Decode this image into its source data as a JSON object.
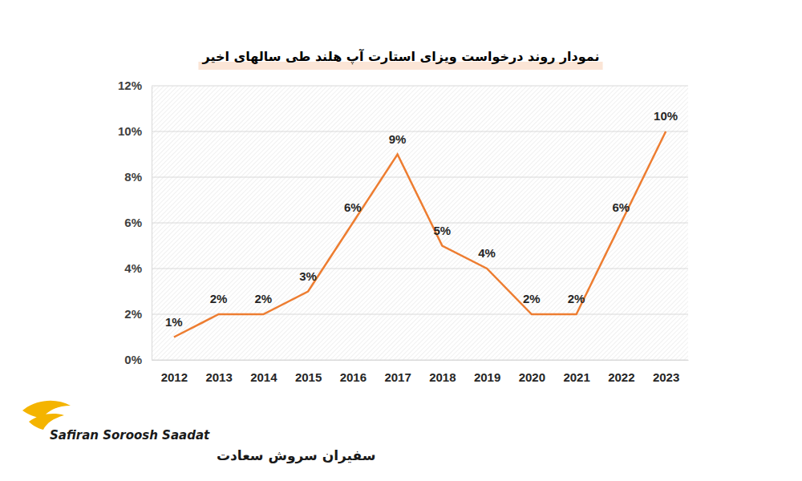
{
  "chart_data": {
    "type": "line",
    "title": "نمودار روند درخواست ویزای استارت آپ هلند طی سالهای اخیر",
    "categories": [
      "2012",
      "2013",
      "2014",
      "2015",
      "2016",
      "2017",
      "2018",
      "2019",
      "2020",
      "2021",
      "2022",
      "2023"
    ],
    "values": [
      1,
      2,
      2,
      3,
      6,
      9,
      5,
      4,
      2,
      2,
      6,
      10
    ],
    "value_labels": [
      "1%",
      "2%",
      "2%",
      "3%",
      "6%",
      "9%",
      "5%",
      "4%",
      "2%",
      "2%",
      "6%",
      "10%"
    ],
    "color": "#ed7d31",
    "ylim": [
      0,
      12
    ],
    "yticks": [
      {
        "value": 0,
        "label": "0%"
      },
      {
        "value": 2,
        "label": "2%"
      },
      {
        "value": 4,
        "label": "4%"
      },
      {
        "value": 6,
        "label": "6%"
      },
      {
        "value": 8,
        "label": "8%"
      },
      {
        "value": 10,
        "label": "10%"
      },
      {
        "value": 12,
        "label": "12%"
      }
    ],
    "grid": true,
    "data_labels": true,
    "annotations": [
      "Safiran Soroosh Saadat",
      "سفیران سروش سعادت"
    ]
  }
}
